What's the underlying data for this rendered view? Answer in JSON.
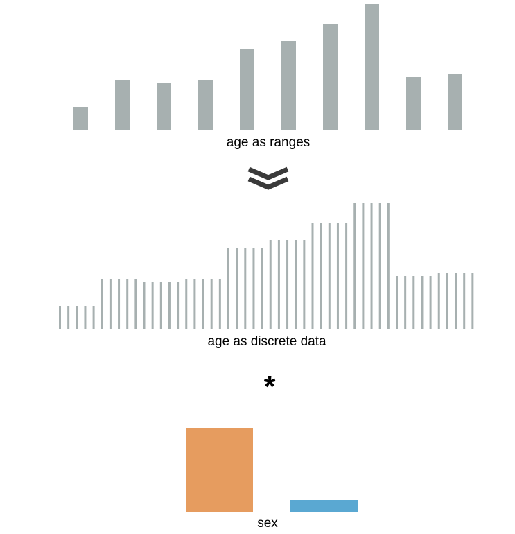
{
  "labels": {
    "ranges": "age as ranges",
    "discrete": "age as discrete data",
    "sex": "sex",
    "operator": "*"
  },
  "icons": {
    "transform": "double-chevron-down-icon"
  },
  "colors": {
    "age_bars": "#a7b0b0",
    "chevron": "#3a3a3a",
    "female": "#e69c5f",
    "male": "#5aa8d2"
  },
  "chart_data": [
    {
      "type": "bar",
      "xlabel": "age as ranges",
      "values": [
        34,
        73,
        68,
        73,
        117,
        129,
        154,
        182,
        77,
        81
      ]
    },
    {
      "type": "bar",
      "xlabel": "age as discrete data",
      "values": [
        34,
        34,
        34,
        34,
        34,
        73,
        73,
        73,
        73,
        73,
        68,
        68,
        68,
        68,
        68,
        73,
        73,
        73,
        73,
        73,
        117,
        117,
        117,
        117,
        117,
        129,
        129,
        129,
        129,
        129,
        154,
        154,
        154,
        154,
        154,
        182,
        182,
        182,
        182,
        182,
        77,
        77,
        77,
        77,
        77,
        81,
        81,
        81,
        81,
        81
      ]
    },
    {
      "type": "bar",
      "xlabel": "sex",
      "values": [
        121,
        17
      ]
    }
  ]
}
